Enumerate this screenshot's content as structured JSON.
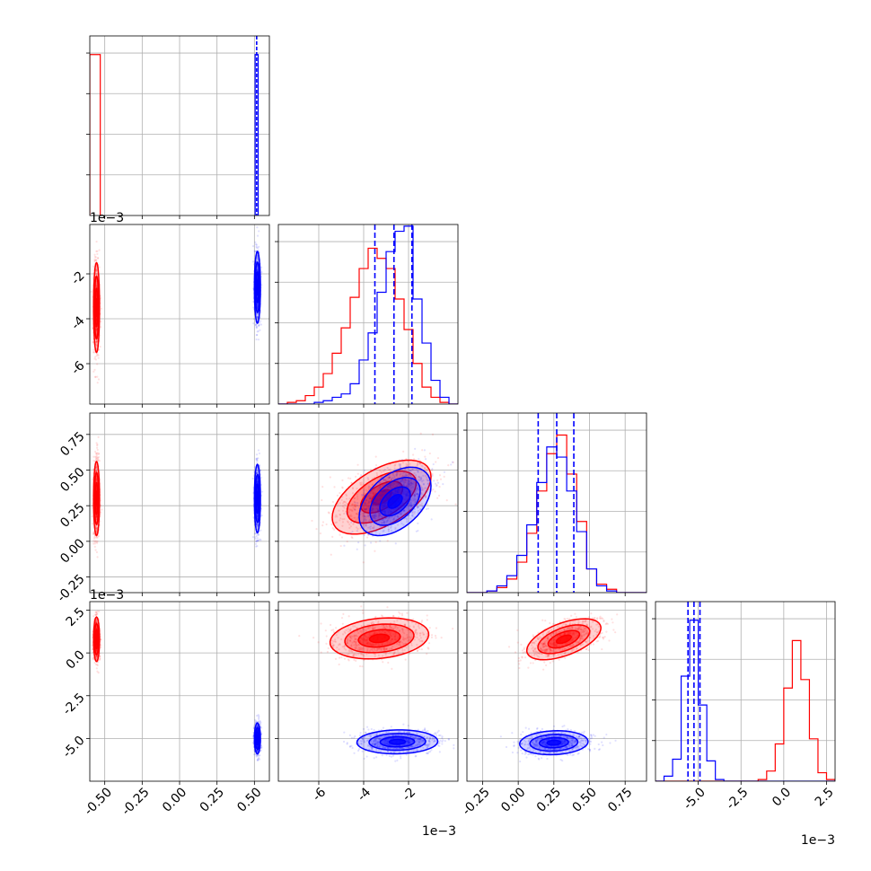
{
  "chart_data": {
    "type": "corner",
    "series": [
      {
        "name": "",
        "color": "#ff0000",
        "col0_value": -0.55
      },
      {
        "name": "",
        "color": "#0000ff",
        "col0_value": 0.52
      }
    ],
    "dims": [
      {
        "ticks": [
          "-0.50",
          "-0.25",
          "0.00",
          "0.25",
          "0.50"
        ],
        "tick_values": [
          -0.5,
          -0.25,
          0.0,
          0.25,
          0.5
        ],
        "range": [
          -0.6,
          0.6
        ],
        "offset_label": ""
      },
      {
        "ticks": [
          "-6",
          "-4",
          "-2"
        ],
        "tick_values": [
          -6,
          -4,
          -2
        ],
        "range": [
          -7.8,
          0.2
        ],
        "offset_label": "1e−3"
      },
      {
        "ticks": [
          "-0.25",
          "0.00",
          "0.25",
          "0.50",
          "0.75"
        ],
        "tick_values": [
          -0.25,
          0.0,
          0.25,
          0.5,
          0.75
        ],
        "range": [
          -0.36,
          0.9
        ],
        "offset_label": ""
      },
      {
        "ticks": [
          "-5.0",
          "-2.5",
          "0.0",
          "2.5"
        ],
        "tick_values": [
          -5.0,
          -2.5,
          0.0,
          2.5
        ],
        "range": [
          -7.5,
          3.0
        ],
        "offset_label": "1e−3"
      }
    ],
    "diag_hists": [
      {
        "red": {
          "edges": [
            -0.6,
            -0.53
          ],
          "counts": [
            0.95
          ]
        },
        "blue": {
          "edges": [
            0.505,
            0.525
          ],
          "counts": [
            0.95
          ]
        },
        "quantile_lines": {
          "blue": [
            0.515
          ]
        }
      },
      {
        "red": {
          "edges": [
            -7.8,
            -7.4,
            -7.0,
            -6.6,
            -6.2,
            -5.8,
            -5.4,
            -5.0,
            -4.6,
            -4.2,
            -3.8,
            -3.4,
            -3.0,
            -2.6,
            -2.2,
            -1.8,
            -1.4,
            -1.0,
            -0.6,
            -0.2,
            0.2
          ],
          "counts": [
            0,
            0.01,
            0.02,
            0.05,
            0.1,
            0.18,
            0.3,
            0.45,
            0.63,
            0.8,
            0.92,
            0.86,
            0.8,
            0.62,
            0.44,
            0.24,
            0.1,
            0.04,
            0.01,
            0.0
          ]
        },
        "blue": {
          "edges": [
            -7.8,
            -7.4,
            -7.0,
            -6.6,
            -6.2,
            -5.8,
            -5.4,
            -5.0,
            -4.6,
            -4.2,
            -3.8,
            -3.4,
            -3.0,
            -2.6,
            -2.2,
            -1.8,
            -1.4,
            -1.0,
            -0.6,
            -0.2,
            0.2
          ],
          "counts": [
            0,
            0,
            0,
            0,
            0.01,
            0.02,
            0.04,
            0.06,
            0.12,
            0.26,
            0.42,
            0.66,
            0.9,
            1.02,
            1.05,
            0.62,
            0.36,
            0.14,
            0.04,
            0.0
          ]
        },
        "quantile_lines": {
          "blue": [
            -3.5,
            -2.65,
            -1.85
          ]
        }
      },
      {
        "red": {
          "edges": [
            -0.36,
            -0.29,
            -0.22,
            -0.15,
            -0.08,
            -0.01,
            0.06,
            0.13,
            0.2,
            0.27,
            0.34,
            0.41,
            0.48,
            0.55,
            0.62,
            0.69,
            0.76,
            0.83,
            0.9
          ],
          "counts": [
            0,
            0,
            0.01,
            0.03,
            0.08,
            0.18,
            0.35,
            0.6,
            0.82,
            0.93,
            0.7,
            0.42,
            0.14,
            0.05,
            0.02,
            0,
            0,
            0
          ]
        },
        "blue": {
          "edges": [
            -0.36,
            -0.29,
            -0.22,
            -0.15,
            -0.08,
            -0.01,
            0.06,
            0.13,
            0.2,
            0.27,
            0.34,
            0.41,
            0.48,
            0.55,
            0.62,
            0.69,
            0.76,
            0.83,
            0.9
          ],
          "counts": [
            0,
            0,
            0.01,
            0.04,
            0.1,
            0.22,
            0.4,
            0.65,
            0.86,
            0.8,
            0.6,
            0.36,
            0.14,
            0.04,
            0.01,
            0,
            0,
            0
          ]
        },
        "quantile_lines": {
          "blue": [
            0.14,
            0.27,
            0.39
          ]
        }
      },
      {
        "red": {
          "edges": [
            -7.5,
            -7.0,
            -6.5,
            -6.0,
            -5.5,
            -5.0,
            -4.5,
            -4.0,
            -3.5,
            -3.0,
            -2.5,
            -2.0,
            -1.5,
            -1.0,
            -0.5,
            0.0,
            0.5,
            1.0,
            1.5,
            2.0,
            2.5,
            3.0
          ],
          "counts": [
            0,
            0,
            0,
            0,
            0,
            0,
            0,
            0,
            0,
            0,
            0,
            0,
            0.01,
            0.06,
            0.22,
            0.55,
            0.83,
            0.6,
            0.25,
            0.05,
            0.01
          ]
        },
        "blue": {
          "edges": [
            -7.5,
            -7.0,
            -6.5,
            -6.0,
            -5.5,
            -5.0,
            -4.5,
            -4.0,
            -3.5,
            -3.0,
            -2.5,
            -2.0,
            -1.5,
            -1.0,
            -0.5,
            0.0,
            0.5,
            1.0,
            1.5,
            2.0,
            2.5,
            3.0
          ],
          "counts": [
            0,
            0.03,
            0.13,
            0.62,
            0.95,
            0.45,
            0.12,
            0.01,
            0,
            0,
            0,
            0,
            0,
            0,
            0,
            0,
            0,
            0,
            0,
            0,
            0
          ]
        },
        "quantile_lines": {
          "blue": [
            -5.6,
            -5.25,
            -4.9
          ]
        }
      }
    ],
    "pairs": [
      {
        "row": 1,
        "col": 0,
        "red": {
          "center": [
            -0.555,
            -3.5
          ],
          "spread": [
            0.01,
            1.0
          ],
          "rho": 0.0
        },
        "blue": {
          "center": [
            0.52,
            -2.6
          ],
          "spread": [
            0.01,
            0.8
          ],
          "rho": 0.0
        }
      },
      {
        "row": 2,
        "col": 0,
        "red": {
          "center": [
            -0.555,
            0.3
          ],
          "spread": [
            0.01,
            0.13
          ],
          "rho": 0.0
        },
        "blue": {
          "center": [
            0.52,
            0.3
          ],
          "spread": [
            0.01,
            0.12
          ],
          "rho": 0.0
        }
      },
      {
        "row": 2,
        "col": 1,
        "red": {
          "center": [
            -3.2,
            0.31
          ],
          "spread": [
            1.1,
            0.13
          ],
          "rho": 0.55
        },
        "blue": {
          "center": [
            -2.6,
            0.28
          ],
          "spread": [
            0.8,
            0.12
          ],
          "rho": 0.45
        }
      },
      {
        "row": 3,
        "col": 0,
        "red": {
          "center": [
            -0.555,
            0.8
          ],
          "spread": [
            0.01,
            0.65
          ],
          "rho": 0.0
        },
        "blue": {
          "center": [
            0.52,
            -5.0
          ],
          "spread": [
            0.01,
            0.45
          ],
          "rho": 0.0
        }
      },
      {
        "row": 3,
        "col": 1,
        "red": {
          "center": [
            -3.3,
            0.85
          ],
          "spread": [
            1.1,
            0.6
          ],
          "rho": 0.2
        },
        "blue": {
          "center": [
            -2.5,
            -5.2
          ],
          "spread": [
            0.9,
            0.35
          ],
          "rho": 0.05
        }
      },
      {
        "row": 3,
        "col": 2,
        "red": {
          "center": [
            0.32,
            0.8
          ],
          "spread": [
            0.13,
            0.6
          ],
          "rho": 0.55
        },
        "blue": {
          "center": [
            0.25,
            -5.25
          ],
          "spread": [
            0.12,
            0.35
          ],
          "rho": 0.1
        }
      }
    ],
    "title": "",
    "legend": "none",
    "grid": true
  }
}
